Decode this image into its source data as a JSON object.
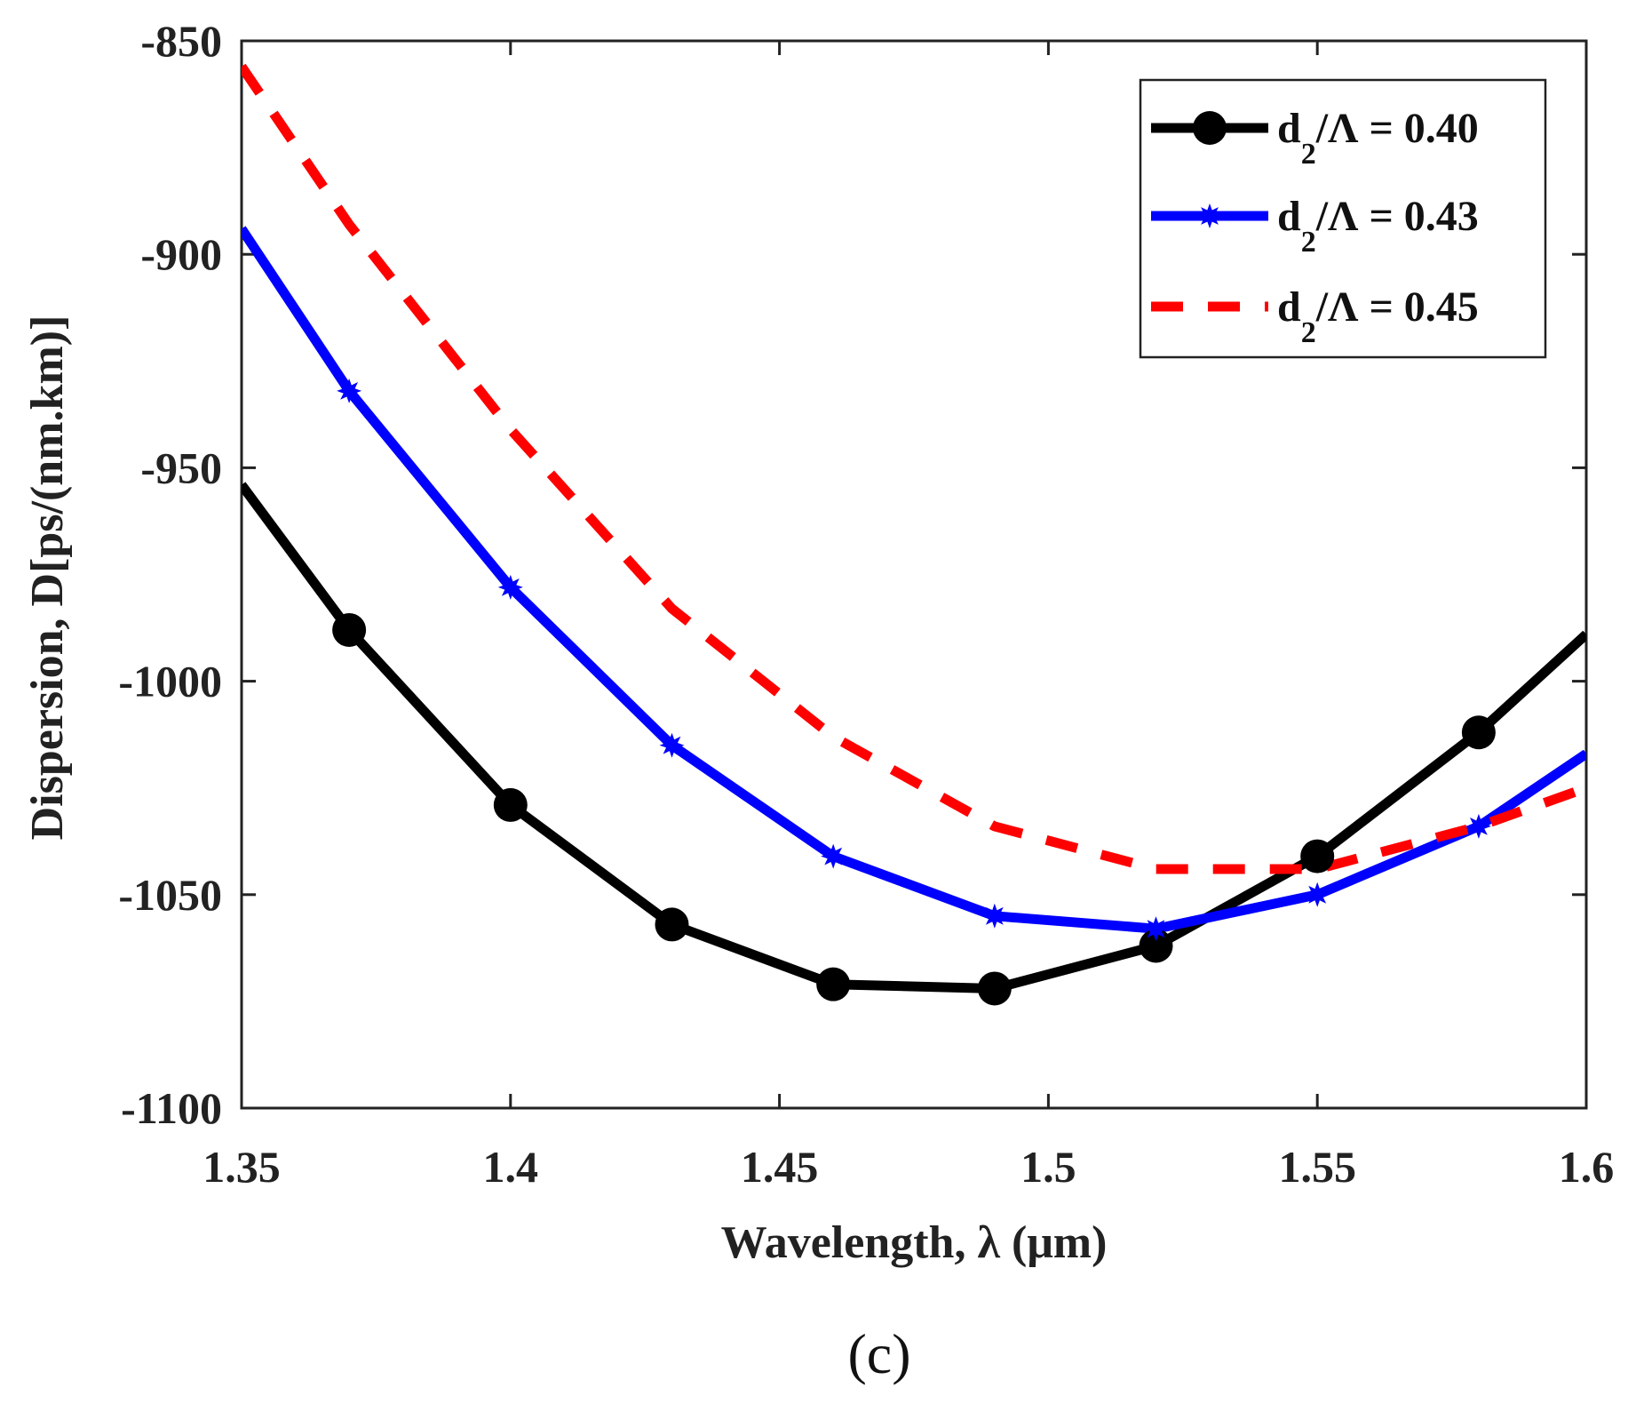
{
  "chart_data": {
    "type": "line",
    "xlabel": "Wavelength, λ (μm)",
    "ylabel": "Dispersion, D[ps/(nm.km)]",
    "caption": "(c)",
    "xlim": [
      1.35,
      1.6
    ],
    "ylim": [
      -1100,
      -850
    ],
    "x_ticks": [
      1.35,
      1.4,
      1.45,
      1.5,
      1.55,
      1.6
    ],
    "x_tick_labels": [
      "1.35",
      "1.4",
      "1.45",
      "1.5",
      "1.55",
      "1.6"
    ],
    "y_ticks": [
      -850,
      -900,
      -950,
      -1000,
      -1050,
      -1100
    ],
    "y_tick_labels": [
      "-850",
      "-900",
      "-950",
      "-1000",
      "-1050",
      "-1100"
    ],
    "grid": false,
    "legend_position": "top-right",
    "series": [
      {
        "name": "d2/Λ = 0.40",
        "legend_main": "d",
        "legend_sub": "2",
        "legend_rest": "/Λ = 0.40",
        "color": "#000000",
        "style": "solid",
        "marker": "circle",
        "x": [
          1.35,
          1.37,
          1.4,
          1.43,
          1.46,
          1.49,
          1.52,
          1.55,
          1.58,
          1.6
        ],
        "values": [
          -954,
          -988,
          -1029,
          -1057,
          -1071,
          -1072,
          -1062,
          -1041,
          -1012,
          -989
        ]
      },
      {
        "name": "d2/Λ = 0.43",
        "legend_main": "d",
        "legend_sub": "2",
        "legend_rest": "/Λ = 0.43",
        "color": "#0000ff",
        "style": "solid",
        "marker": "star",
        "x": [
          1.35,
          1.37,
          1.4,
          1.43,
          1.46,
          1.49,
          1.52,
          1.55,
          1.58,
          1.6
        ],
        "values": [
          -894,
          -932,
          -978,
          -1015,
          -1041,
          -1055,
          -1058,
          -1050,
          -1034,
          -1017
        ]
      },
      {
        "name": "d2/Λ = 0.45",
        "legend_main": "d",
        "legend_sub": "2",
        "legend_rest": "/Λ = 0.45",
        "color": "#ff0000",
        "style": "dashed",
        "marker": "none",
        "x": [
          1.35,
          1.37,
          1.4,
          1.43,
          1.46,
          1.49,
          1.52,
          1.55,
          1.58,
          1.6
        ],
        "values": [
          -856,
          -893,
          -941,
          -983,
          -1013,
          -1034,
          -1044,
          -1044,
          -1034,
          -1025
        ]
      }
    ]
  }
}
